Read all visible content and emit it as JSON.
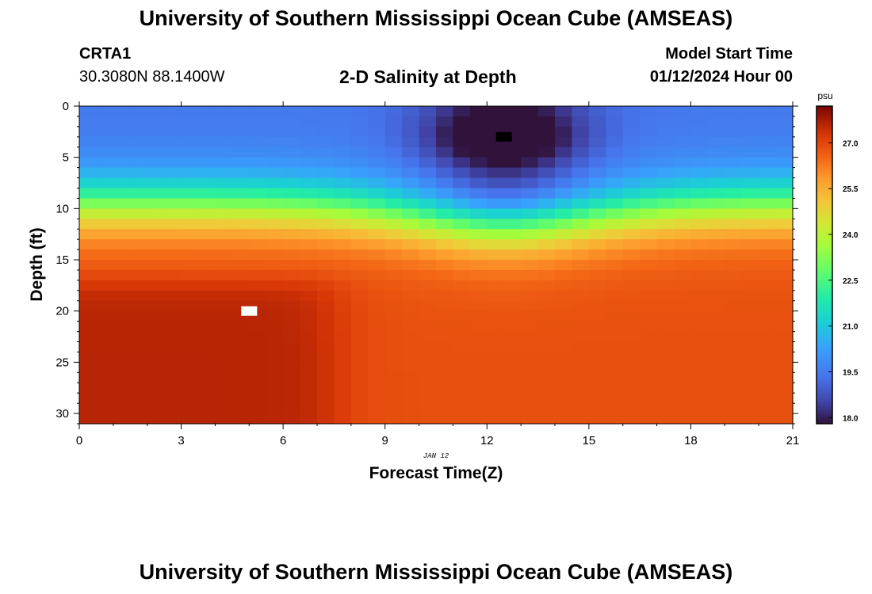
{
  "header": {
    "title": "University of Southern Mississippi Ocean Cube (AMSEAS)",
    "station": "CRTA1",
    "coords": "30.3080N  88.1400W",
    "subtitle": "2-D Salinity at Depth",
    "start_label": "Model Start Time",
    "start_value": "01/12/2024 Hour 00"
  },
  "footer": {
    "title": "University of Southern Mississippi Ocean Cube (AMSEAS)"
  },
  "chart_data": {
    "type": "heatmap",
    "title": "2-D Salinity at Depth",
    "xlabel": "Forecast Time(Z)",
    "ylabel": "Depth (ft)",
    "x_annotation": "JAN 12",
    "xlim": [
      0,
      21
    ],
    "ylim": [
      31,
      0
    ],
    "x_ticks": [
      0,
      3,
      6,
      9,
      12,
      15,
      18,
      21
    ],
    "y_ticks": [
      0,
      5,
      10,
      15,
      20,
      25,
      30
    ],
    "colorbar": {
      "unit": "psu",
      "range": [
        17.8,
        28.2
      ],
      "ticks": [
        "18.0",
        "19.5",
        "21.0",
        "22.5",
        "24.0",
        "25.5",
        "27.0"
      ]
    },
    "grid": {
      "time_step_h": 0.5,
      "depth_step_ft": 1.0
    },
    "features": [
      {
        "label": "minimum salinity",
        "time_h": 12.5,
        "depth_ft": 3,
        "value": 17.9
      },
      {
        "label": "maximum salinity",
        "time_h": 5,
        "depth_ft": 20,
        "value": 28.2
      }
    ]
  }
}
